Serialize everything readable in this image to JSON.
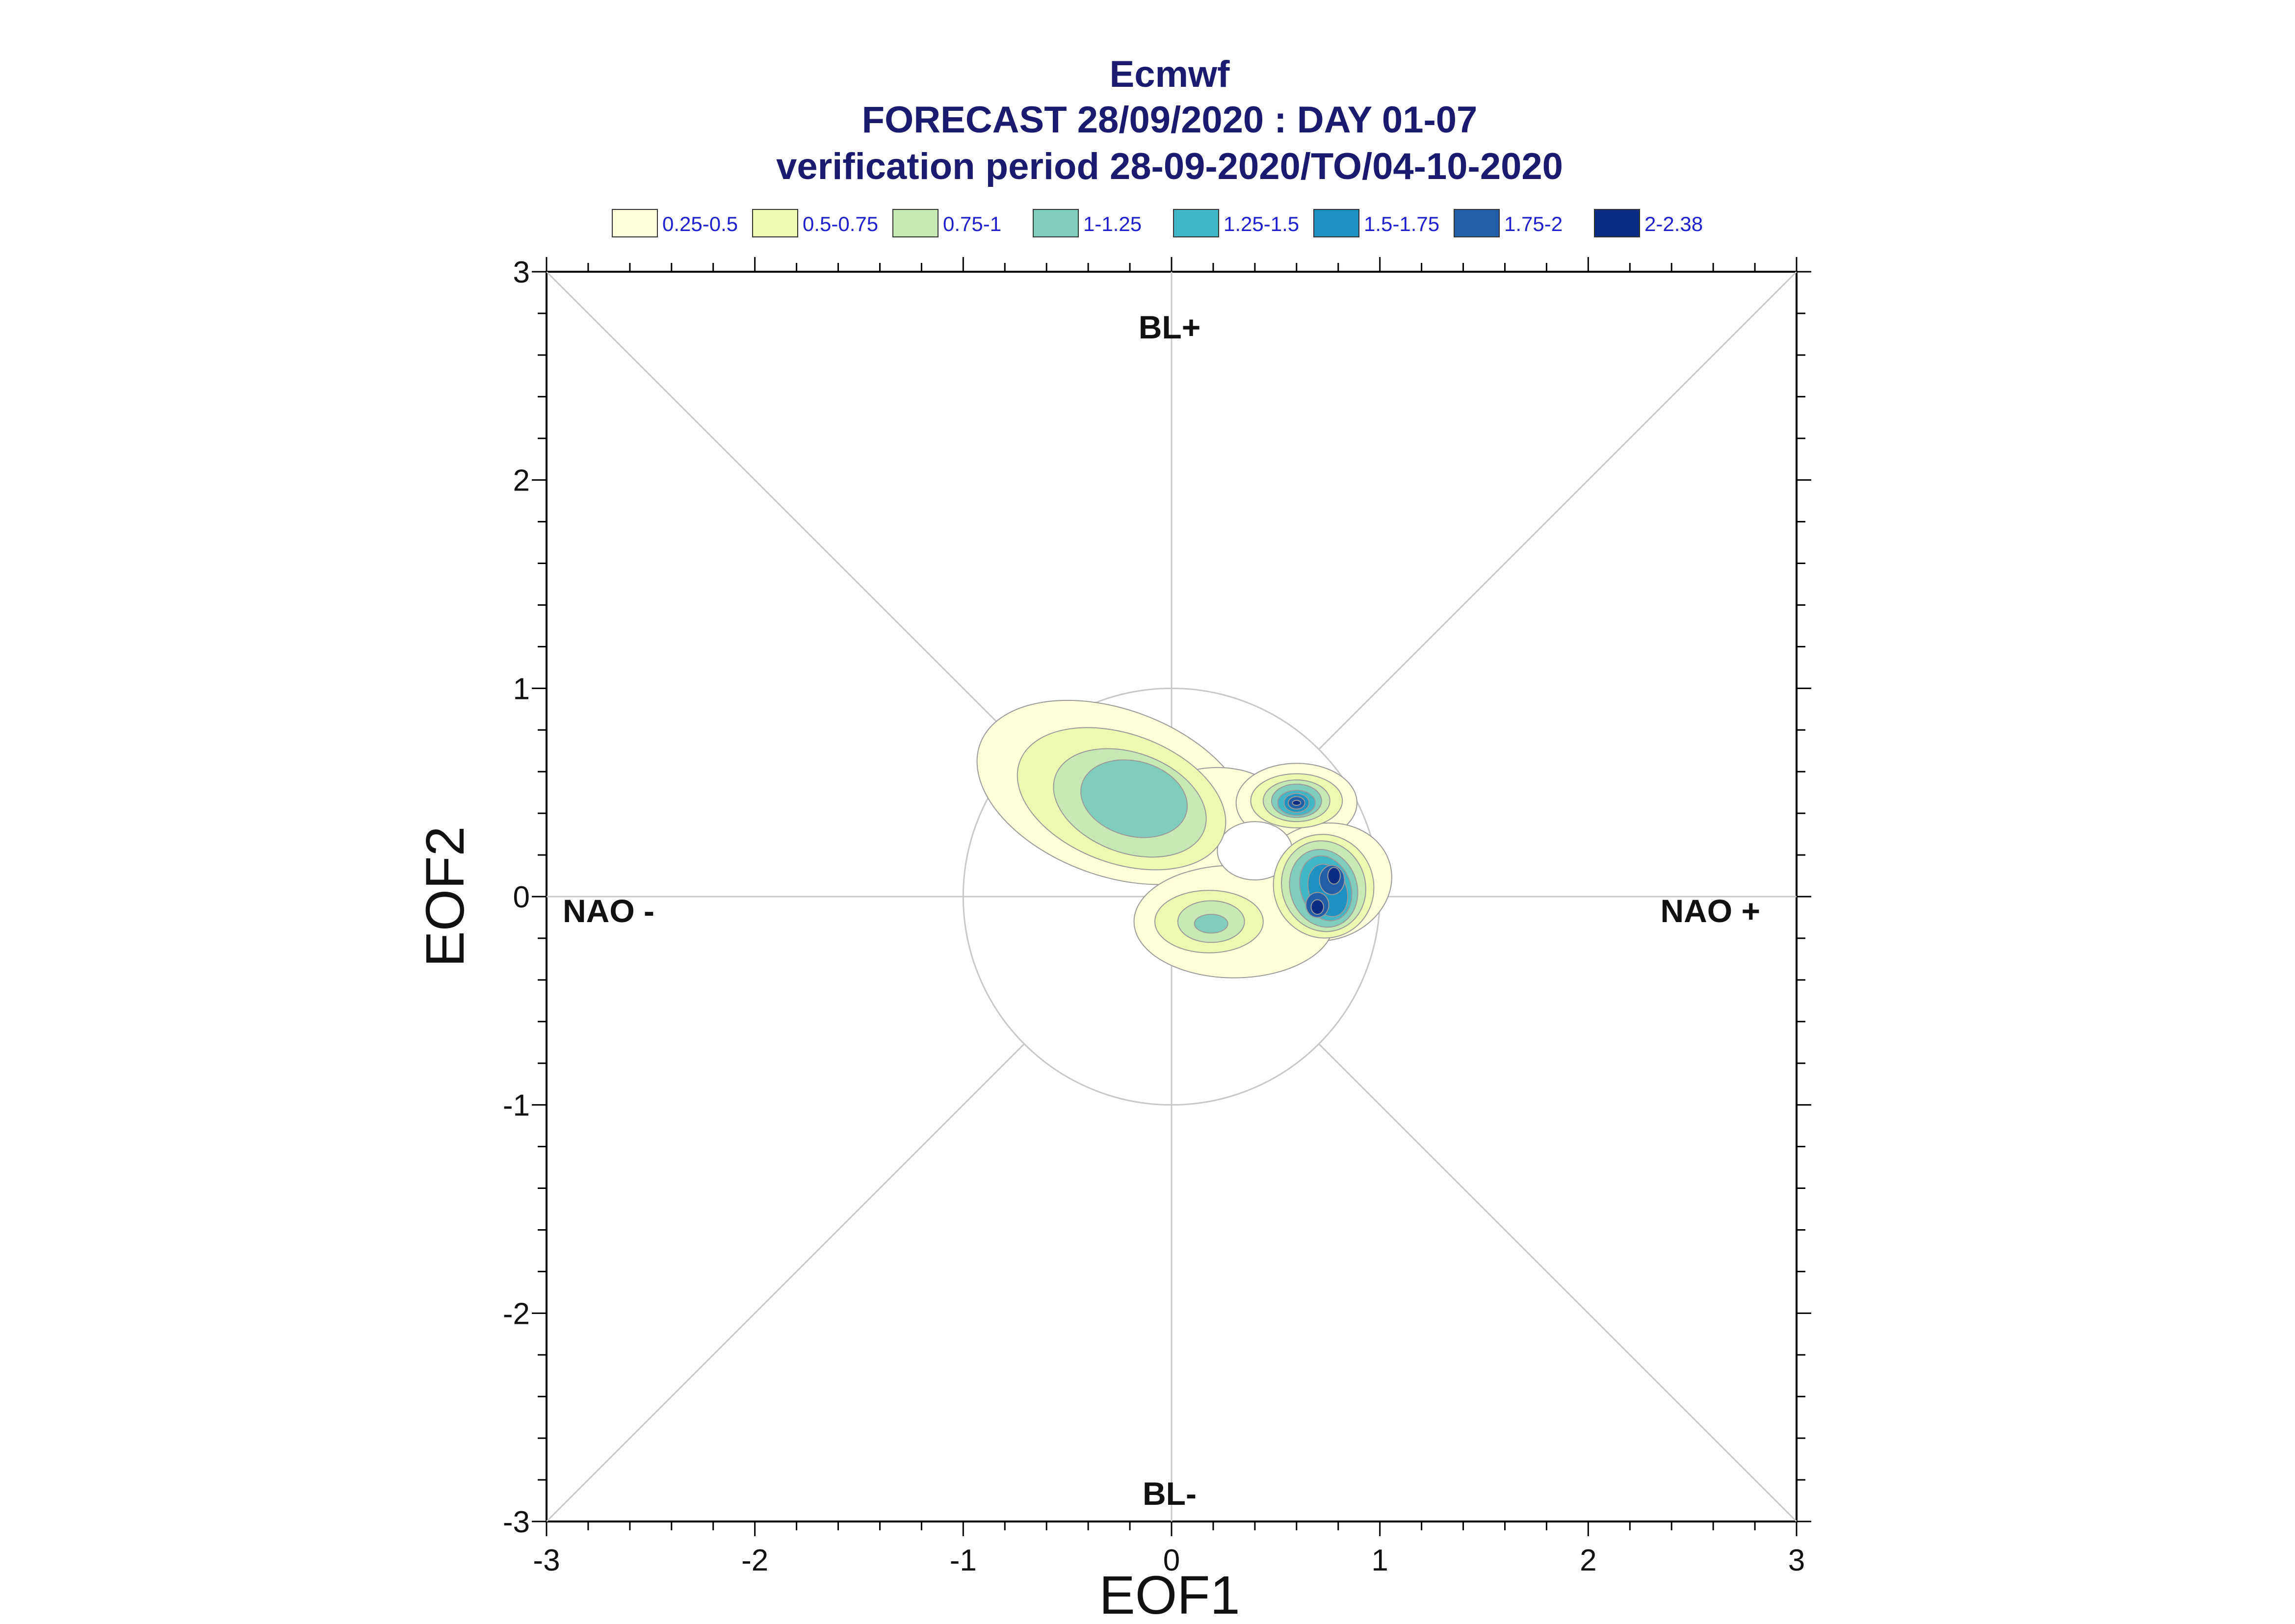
{
  "chart_data": {
    "type": "contour",
    "title_lines": [
      "Ecmwf",
      "FORECAST 28/09/2020 : DAY 01-07",
      "verification period 28-09-2020/TO/04-10-2020"
    ],
    "xlabel": "EOF1",
    "ylabel": "EOF2",
    "xlim": [
      -3,
      3
    ],
    "ylim": [
      -3,
      3
    ],
    "x_ticks": [
      "-3",
      "-2",
      "-1",
      "0",
      "1",
      "2",
      "3"
    ],
    "y_ticks": [
      "-3",
      "-2",
      "-1",
      "0",
      "1",
      "2",
      "3"
    ],
    "legend": [
      {
        "label": "0.25-0.5",
        "color": "#ffffd9"
      },
      {
        "label": "0.5-0.75",
        "color": "#edf8b1"
      },
      {
        "label": "0.75-1",
        "color": "#c7e9b4"
      },
      {
        "label": "1-1.25",
        "color": "#7fcdbb"
      },
      {
        "label": "1.25-1.5",
        "color": "#41b6c4"
      },
      {
        "label": "1.5-1.75",
        "color": "#1d91c0"
      },
      {
        "label": "1.75-2",
        "color": "#225ea8"
      },
      {
        "label": "2-2.38",
        "color": "#0c2c84"
      }
    ],
    "regime_labels": {
      "top": "BL+",
      "bottom": "BL-",
      "left": "NAO -",
      "right": "NAO +"
    },
    "unit_circle_radius": 1,
    "density_centers": [
      {
        "x": -0.2,
        "y": 0.45,
        "max_level": "1-1.25"
      },
      {
        "x": 0.6,
        "y": 0.45,
        "max_level": "2-2.38"
      },
      {
        "x": 0.78,
        "y": 0.1,
        "max_level": "2-2.38"
      },
      {
        "x": 0.7,
        "y": -0.05,
        "max_level": "2-2.38"
      },
      {
        "x": 0.18,
        "y": -0.13,
        "max_level": "1-1.25"
      }
    ]
  }
}
